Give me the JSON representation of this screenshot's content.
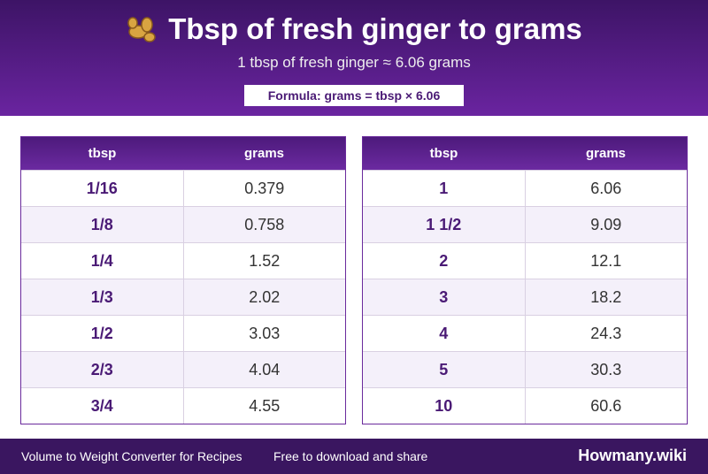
{
  "header": {
    "title": "Tbsp of fresh ginger to grams",
    "subtitle": "1 tbsp of fresh ginger ≈ 6.06 grams",
    "formula": "Formula: grams = tbsp × 6.06"
  },
  "tables": [
    {
      "columns": [
        "tbsp",
        "grams"
      ],
      "rows": [
        [
          "1/16",
          "0.379"
        ],
        [
          "1/8",
          "0.758"
        ],
        [
          "1/4",
          "1.52"
        ],
        [
          "1/3",
          "2.02"
        ],
        [
          "1/2",
          "3.03"
        ],
        [
          "2/3",
          "4.04"
        ],
        [
          "3/4",
          "4.55"
        ]
      ]
    },
    {
      "columns": [
        "tbsp",
        "grams"
      ],
      "rows": [
        [
          "1",
          "6.06"
        ],
        [
          "1 1/2",
          "9.09"
        ],
        [
          "2",
          "12.1"
        ],
        [
          "3",
          "18.2"
        ],
        [
          "4",
          "24.3"
        ],
        [
          "5",
          "30.3"
        ],
        [
          "10",
          "60.6"
        ]
      ]
    }
  ],
  "footer": {
    "left": "Volume to Weight Converter for Recipes",
    "middle": "Free to download and share",
    "brand": "Howmany.wiki"
  }
}
